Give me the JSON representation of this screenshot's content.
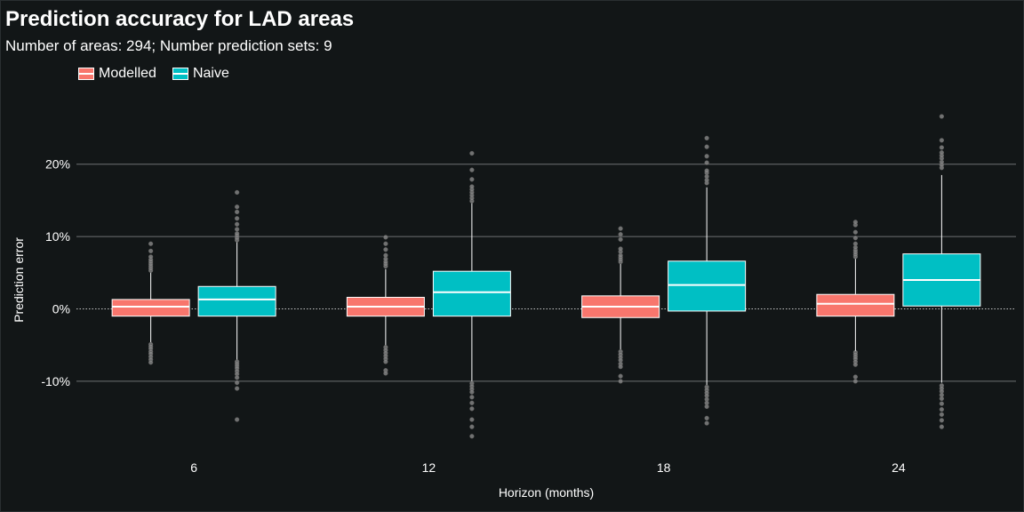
{
  "chart_data": {
    "type": "box",
    "title": "Prediction accuracy for LAD areas",
    "subtitle": "Number of areas: 294; Number prediction sets: 9",
    "xlabel": "Horizon (months)",
    "ylabel": "Prediction error",
    "categories": [
      "6",
      "12",
      "18",
      "24"
    ],
    "y_ticks": [
      "-10%",
      "0%",
      "10%",
      "20%"
    ],
    "y_tick_values": [
      -10,
      0,
      10,
      20
    ],
    "ylim": [
      -18.5,
      27.5
    ],
    "grid": true,
    "reference_line": 0,
    "legend_placement": "top-left",
    "series": [
      {
        "name": "Modelled",
        "color": "#f8766d",
        "boxes": [
          {
            "q1": -1.0,
            "median": 0.3,
            "q3": 1.3,
            "whisker_low": -4.6,
            "whisker_high": 5.0,
            "outliers": [
              -4.9,
              -5.2,
              -5.5,
              -5.9,
              -6.2,
              -6.6,
              -7.0,
              -7.4,
              5.3,
              5.6,
              5.9,
              6.2,
              6.5,
              6.8,
              7.2,
              8.0,
              9.0
            ]
          },
          {
            "q1": -1.0,
            "median": 0.3,
            "q3": 1.6,
            "whisker_low": -5.0,
            "whisker_high": 5.5,
            "outliers": [
              -5.3,
              -5.7,
              -6.1,
              -6.5,
              -6.9,
              -7.3,
              -8.5,
              -8.9,
              5.9,
              6.2,
              6.5,
              6.9,
              7.4,
              8.2,
              9.0,
              9.9
            ]
          },
          {
            "q1": -1.2,
            "median": 0.3,
            "q3": 1.8,
            "whisker_low": -5.6,
            "whisker_high": 6.2,
            "outliers": [
              -5.9,
              -6.3,
              -6.7,
              -7.1,
              -7.6,
              -8.0,
              -9.3,
              -10.0,
              6.5,
              6.8,
              7.1,
              7.4,
              7.9,
              8.3,
              9.6,
              10.3,
              11.1
            ]
          },
          {
            "q1": -1.0,
            "median": 0.7,
            "q3": 2.0,
            "whisker_low": -5.8,
            "whisker_high": 6.9,
            "outliers": [
              -6.0,
              -6.3,
              -6.6,
              -6.9,
              -7.3,
              -7.7,
              -9.4,
              -10.0,
              7.2,
              7.5,
              7.8,
              8.1,
              8.5,
              9.0,
              9.8,
              10.6,
              11.6,
              12.0
            ]
          }
        ]
      },
      {
        "name": "Naive",
        "color": "#00bfc4",
        "boxes": [
          {
            "q1": -1.0,
            "median": 1.3,
            "q3": 3.1,
            "whisker_low": -7.0,
            "whisker_high": 9.2,
            "outliers": [
              -7.3,
              -7.6,
              -7.9,
              -8.2,
              -8.6,
              -9.0,
              -9.5,
              -10.2,
              -11.0,
              -15.3,
              9.5,
              9.8,
              10.1,
              10.4,
              11.0,
              11.7,
              12.5,
              13.4,
              14.1,
              16.1
            ]
          },
          {
            "q1": -1.0,
            "median": 2.3,
            "q3": 5.2,
            "whisker_low": -10.0,
            "whisker_high": 14.6,
            "outliers": [
              -10.3,
              -10.7,
              -11.1,
              -11.5,
              -12.2,
              -13.0,
              -13.8,
              -15.3,
              -16.3,
              -17.6,
              14.9,
              15.3,
              15.7,
              16.1,
              16.5,
              16.9,
              17.9,
              19.2,
              21.5
            ]
          },
          {
            "q1": -0.3,
            "median": 3.3,
            "q3": 6.6,
            "whisker_low": -10.5,
            "whisker_high": 16.8,
            "outliers": [
              -10.8,
              -11.2,
              -11.6,
              -12.0,
              -12.5,
              -13.0,
              -13.5,
              -15.1,
              -15.8,
              17.4,
              17.8,
              18.3,
              18.8,
              19.1,
              20.2,
              21.1,
              22.4,
              23.6
            ]
          },
          {
            "q1": 0.4,
            "median": 4.0,
            "q3": 7.6,
            "whisker_low": -10.2,
            "whisker_high": 18.5,
            "outliers": [
              -10.6,
              -11.0,
              -11.4,
              -11.9,
              -12.4,
              -13.1,
              -13.9,
              -14.6,
              -15.4,
              -16.3,
              19.5,
              19.9,
              20.3,
              20.8,
              21.2,
              21.6,
              22.3,
              23.3,
              26.6
            ]
          }
        ]
      }
    ]
  },
  "style": {
    "background": "#121617",
    "grid_color": "#6e7173",
    "outlier_color": "#8a8a8a",
    "text_color": "#ffffff"
  }
}
